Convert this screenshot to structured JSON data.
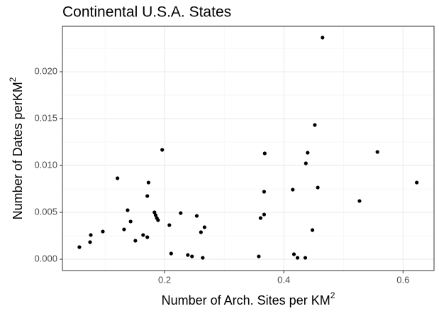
{
  "chart_data": {
    "type": "scatter",
    "title": "Continental U.S.A. States",
    "xlabel": {
      "text": "Number of Arch. Sites per KM",
      "superscript": "2"
    },
    "ylabel": {
      "text": "Number of Dates perKM",
      "superscript": "2"
    },
    "xlim": [
      0.0286,
      0.652
    ],
    "ylim": [
      -0.00121,
      0.02485
    ],
    "xticks": [
      0.2,
      0.4,
      0.6
    ],
    "yticks": [
      {
        "value": 0,
        "label": "0.000"
      },
      {
        "value": 0.005,
        "label": "0.005"
      },
      {
        "value": 0.01,
        "label": "0.010"
      },
      {
        "value": 0.015,
        "label": "0.015"
      },
      {
        "value": 0.02,
        "label": "0.020"
      }
    ],
    "grid": true,
    "color": "#000000",
    "x": [
      0.0571,
      0.075,
      0.0762,
      0.0964,
      0.121,
      0.132,
      0.138,
      0.143,
      0.151,
      0.164,
      0.171,
      0.171,
      0.173,
      0.183,
      0.185,
      0.187,
      0.189,
      0.196,
      0.208,
      0.211,
      0.227,
      0.239,
      0.246,
      0.254,
      0.261,
      0.264,
      0.267,
      0.358,
      0.361,
      0.367,
      0.367,
      0.368,
      0.415,
      0.417,
      0.423,
      0.436,
      0.437,
      0.44,
      0.448,
      0.452,
      0.457,
      0.465,
      0.527,
      0.557,
      0.623
    ],
    "values": [
      0.00129,
      0.00182,
      0.00258,
      0.00295,
      0.00864,
      0.00318,
      0.00523,
      0.00402,
      0.00197,
      0.00258,
      0.00235,
      0.00674,
      0.00818,
      0.005,
      0.0047,
      0.00439,
      0.00417,
      0.01167,
      0.00364,
      0.00061,
      0.00492,
      0.00045,
      0.0003,
      0.00462,
      0.00288,
      0.00015,
      0.00341,
      0.0003,
      0.00439,
      0.0072,
      0.00477,
      0.01129,
      0.00742,
      0.00053,
      0.00015,
      0.00015,
      0.01023,
      0.01136,
      0.00311,
      0.01432,
      0.00765,
      0.02364,
      0.00621,
      0.01144,
      0.00818
    ]
  }
}
